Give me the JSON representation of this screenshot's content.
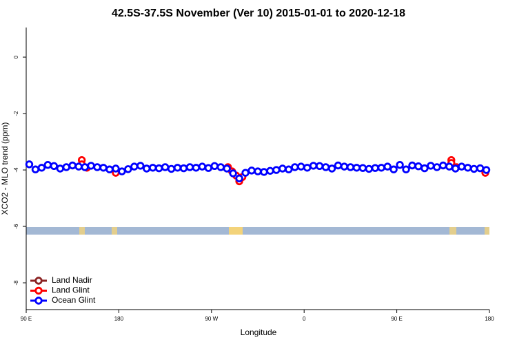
{
  "chart_data": {
    "type": "scatter",
    "title": "42.5S-37.5S November (Ver 10)   2015-01-01 to 2020-12-18",
    "x_label": "Longitude",
    "y_label": "XCO2 - MLO trend (ppm)",
    "xlim": [
      90,
      540
    ],
    "xticks": [
      {
        "value": 90,
        "label": "90 E"
      },
      {
        "value": 180,
        "label": "180"
      },
      {
        "value": 270,
        "label": "90 W"
      },
      {
        "value": 360,
        "label": "0"
      },
      {
        "value": 450,
        "label": "90 E"
      },
      {
        "value": 540,
        "label": "180"
      }
    ],
    "ylim": [
      -8.95,
      1.05
    ],
    "yticks": [
      0,
      -2,
      -4,
      -6,
      -8
    ],
    "legend": "bottom-left",
    "series": [
      {
        "name": "Land Nadir",
        "color": "#8b2323",
        "x": [],
        "values": []
      },
      {
        "name": "Land Glint",
        "color": "#ff0000",
        "x": [
          144,
          144,
          149,
          177,
          286,
          290,
          294,
          297,
          300,
          503,
          503,
          508,
          536
        ],
        "values": [
          -3.65,
          -3.8,
          -3.92,
          -4.1,
          -3.9,
          -4.05,
          -4.2,
          -4.4,
          -4.25,
          -3.65,
          -3.75,
          -3.9,
          -4.1
        ]
      },
      {
        "name": "Ocean Glint",
        "color": "#0000ff",
        "x": [
          93,
          99,
          105,
          111,
          117,
          123,
          129,
          135,
          141,
          147,
          153,
          159,
          165,
          171,
          177,
          183,
          189,
          195,
          201,
          207,
          213,
          219,
          225,
          231,
          237,
          243,
          249,
          255,
          261,
          267,
          273,
          279,
          285,
          291,
          297,
          303,
          309,
          315,
          321,
          327,
          333,
          339,
          345,
          351,
          357,
          363,
          369,
          375,
          381,
          387,
          393,
          399,
          405,
          411,
          417,
          423,
          429,
          435,
          441,
          447,
          453,
          459,
          465,
          471,
          477,
          483,
          489,
          495,
          501,
          507,
          513,
          519,
          525,
          531,
          537
        ],
        "values": [
          -3.8,
          -3.98,
          -3.92,
          -3.82,
          -3.86,
          -3.95,
          -3.9,
          -3.84,
          -3.88,
          -3.9,
          -3.85,
          -3.9,
          -3.92,
          -3.98,
          -3.95,
          -4.05,
          -3.97,
          -3.88,
          -3.85,
          -3.95,
          -3.92,
          -3.94,
          -3.9,
          -3.96,
          -3.92,
          -3.94,
          -3.9,
          -3.92,
          -3.88,
          -3.93,
          -3.86,
          -3.9,
          -3.95,
          -4.12,
          -4.3,
          -4.1,
          -4.02,
          -4.05,
          -4.07,
          -4.03,
          -4.0,
          -3.95,
          -3.98,
          -3.9,
          -3.88,
          -3.92,
          -3.85,
          -3.86,
          -3.9,
          -3.95,
          -3.84,
          -3.88,
          -3.9,
          -3.92,
          -3.93,
          -3.96,
          -3.93,
          -3.92,
          -3.88,
          -3.98,
          -3.82,
          -3.98,
          -3.84,
          -3.87,
          -3.94,
          -3.85,
          -3.9,
          -3.84,
          -3.88,
          -3.95,
          -3.88,
          -3.92,
          -3.96,
          -3.94,
          -4.0
        ]
      }
    ]
  }
}
